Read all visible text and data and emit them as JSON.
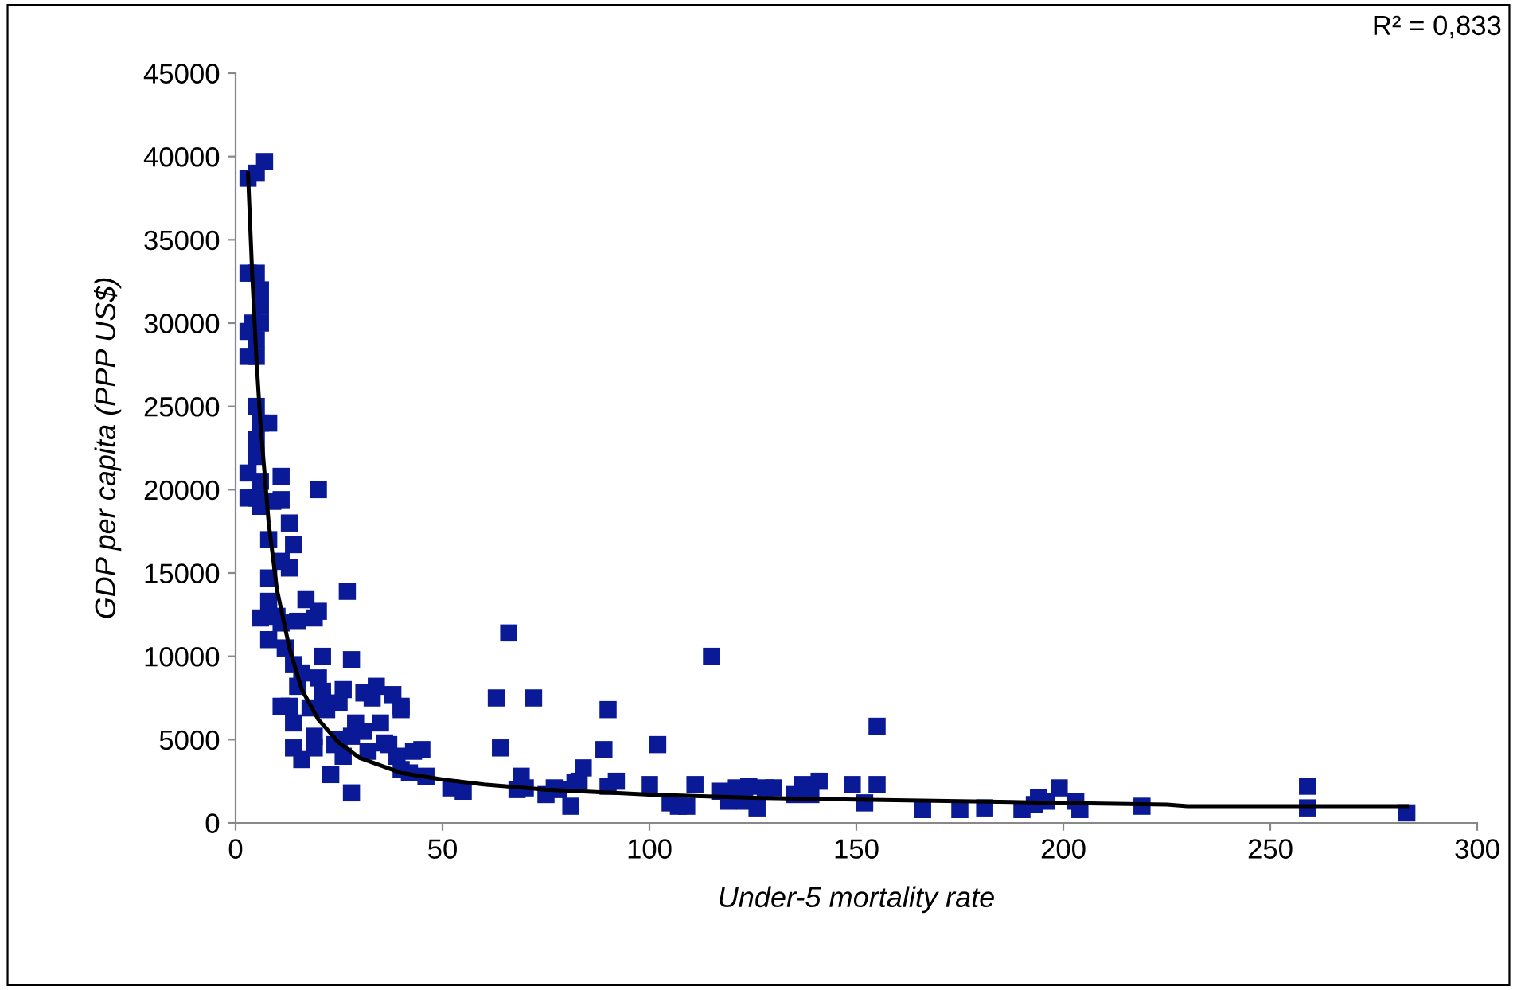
{
  "chart_data": {
    "type": "scatter",
    "xlabel": "Under-5 mortality rate",
    "ylabel": "GDP per capita (PPP US$)",
    "annotations": [
      "R² = 0,833"
    ],
    "xlim": [
      0,
      300
    ],
    "xticks": [
      0,
      50,
      100,
      150,
      200,
      250,
      300
    ],
    "ylim": [
      0,
      45000
    ],
    "yticks": [
      0,
      5000,
      10000,
      15000,
      20000,
      25000,
      30000,
      35000,
      40000,
      45000
    ],
    "grid": false,
    "legend": false,
    "marker": "square",
    "series": [
      {
        "color": "#0a1a96",
        "x": [
          5,
          7,
          3,
          3,
          5,
          6,
          6,
          6,
          4,
          3,
          5,
          3,
          5,
          5,
          6,
          8,
          5,
          5,
          3,
          6,
          3,
          5,
          6,
          9,
          11,
          11,
          6,
          8,
          8,
          8,
          8,
          10,
          11,
          12,
          13,
          14,
          13,
          15,
          11,
          11,
          14,
          16,
          20,
          20,
          19,
          17,
          13,
          15,
          14,
          14,
          16,
          18,
          19,
          19,
          20,
          21,
          21,
          21,
          22,
          23,
          24,
          25,
          26,
          26,
          25,
          27,
          28,
          28,
          28,
          29,
          31,
          31,
          32,
          33,
          34,
          35,
          36,
          37,
          38,
          39,
          40,
          40,
          40,
          42,
          43,
          45,
          46,
          52,
          55,
          63,
          64,
          66,
          68,
          69,
          70,
          72,
          75,
          77,
          78,
          81,
          82,
          83,
          84,
          89,
          90,
          90,
          92,
          100,
          102,
          105,
          107,
          109,
          111,
          115,
          117,
          119,
          121,
          123,
          124,
          126,
          128,
          130,
          135,
          137,
          139,
          141,
          149,
          152,
          155,
          155,
          166,
          175,
          181,
          190,
          193,
          194,
          196,
          199,
          203,
          204,
          219,
          259,
          259,
          283
        ],
        "values": [
          39000,
          39700,
          38700,
          33000,
          33000,
          32000,
          31000,
          30000,
          30000,
          29500,
          29000,
          28000,
          28000,
          25000,
          24000,
          24000,
          23000,
          22000,
          21000,
          20500,
          19500,
          19500,
          19000,
          19300,
          20800,
          19400,
          12300,
          17000,
          14700,
          13300,
          11000,
          12400,
          12000,
          10500,
          18000,
          16700,
          15300,
          12100,
          15700,
          7000,
          9500,
          9000,
          20000,
          12700,
          12300,
          13400,
          7000,
          8200,
          6000,
          4500,
          3800,
          6900,
          5200,
          4500,
          8700,
          7900,
          10000,
          7500,
          6800,
          2900,
          4700,
          5000,
          4000,
          8000,
          7200,
          13900,
          9800,
          5200,
          1800,
          6000,
          5500,
          7800,
          4300,
          7500,
          8200,
          6000,
          4800,
          4700,
          7700,
          4000,
          7000,
          6800,
          3200,
          3000,
          4300,
          4400,
          2800,
          2100,
          1900,
          7500,
          4500,
          11400,
          2000,
          2800,
          2100,
          7500,
          1700,
          2100,
          2000,
          1000,
          2400,
          2500,
          3300,
          4400,
          6800,
          2200,
          2500,
          2300,
          4700,
          1200,
          1000,
          1000,
          2300,
          10000,
          1900,
          1300,
          2100,
          1300,
          2200,
          900,
          2100,
          2100,
          1700,
          2300,
          1700,
          2500,
          2300,
          1200,
          5800,
          2300,
          800,
          800,
          900,
          800,
          1100,
          1500,
          1300,
          2100,
          1300,
          800,
          1000,
          900,
          2200,
          600
        ]
      },
      {
        "type": "line",
        "color": "#000000",
        "marker": "none",
        "line_style": "solid",
        "x": [
          3,
          4,
          5,
          6,
          8,
          10,
          13,
          16,
          20,
          25,
          30,
          40,
          50,
          60,
          75,
          100,
          125,
          150,
          175,
          200,
          225,
          230,
          283
        ],
        "values": [
          39000,
          33000,
          28000,
          24000,
          18000,
          14000,
          10500,
          8000,
          6200,
          4800,
          3900,
          3000,
          2600,
          2300,
          2000,
          1700,
          1500,
          1400,
          1300,
          1200,
          1100,
          1000,
          1000
        ]
      }
    ]
  }
}
